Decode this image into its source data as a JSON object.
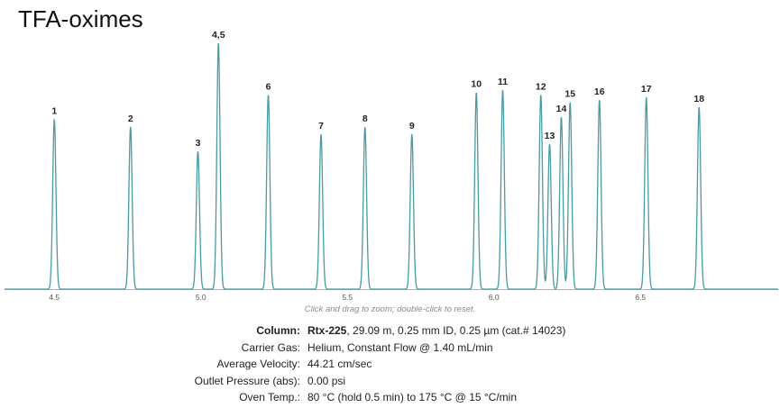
{
  "page_title": "TFA-oximes",
  "chart_data": {
    "type": "line",
    "title": "TFA-oximes",
    "xlabel": "",
    "ylabel": "",
    "xlim": [
      4.33,
      6.97
    ],
    "xticks": [
      4.5,
      5.0,
      5.5,
      6.0,
      6.5
    ],
    "xtick_labels": [
      "4.5",
      "5.0",
      "5.5",
      "6.0",
      "6.5"
    ],
    "peaks": [
      {
        "label": "1",
        "rt": 4.5,
        "height": 0.69
      },
      {
        "label": "2",
        "rt": 4.76,
        "height": 0.66
      },
      {
        "label": "3",
        "rt": 4.99,
        "height": 0.56
      },
      {
        "label": "4,5",
        "rt": 5.06,
        "height": 1.0
      },
      {
        "label": "6",
        "rt": 5.23,
        "height": 0.79
      },
      {
        "label": "7",
        "rt": 5.41,
        "height": 0.63
      },
      {
        "label": "8",
        "rt": 5.56,
        "height": 0.66
      },
      {
        "label": "9",
        "rt": 5.72,
        "height": 0.63
      },
      {
        "label": "10",
        "rt": 5.94,
        "height": 0.8
      },
      {
        "label": "11",
        "rt": 6.03,
        "height": 0.81
      },
      {
        "label": "12",
        "rt": 6.16,
        "height": 0.79
      },
      {
        "label": "13",
        "rt": 6.19,
        "height": 0.59
      },
      {
        "label": "14",
        "rt": 6.23,
        "height": 0.7
      },
      {
        "label": "15",
        "rt": 6.26,
        "height": 0.76
      },
      {
        "label": "16",
        "rt": 6.36,
        "height": 0.77
      },
      {
        "label": "17",
        "rt": 6.52,
        "height": 0.78
      },
      {
        "label": "18",
        "rt": 6.7,
        "height": 0.74
      }
    ],
    "line_color": "#4a9aa2",
    "grid": false
  },
  "zoom_hint": "Click and drag to zoom; double-click to reset.",
  "conditions": [
    {
      "label": "Column:",
      "value_bold": "Rtx-225",
      "value": ", 29.09 m, 0.25 mm ID, 0.25 µm (cat.# 14023)"
    },
    {
      "label": "Carrier Gas:",
      "value_bold": "",
      "value": "Helium, Constant Flow @ 1.40 mL/min"
    },
    {
      "label": "Average Velocity:",
      "value_bold": "",
      "value": "44.21 cm/sec"
    },
    {
      "label": "Outlet Pressure (abs):",
      "value_bold": "",
      "value": "0.00 psi"
    },
    {
      "label": "Oven Temp.:",
      "value_bold": "",
      "value": "80 °C (hold 0.5 min) to 175 °C @ 15 °C/min"
    }
  ]
}
